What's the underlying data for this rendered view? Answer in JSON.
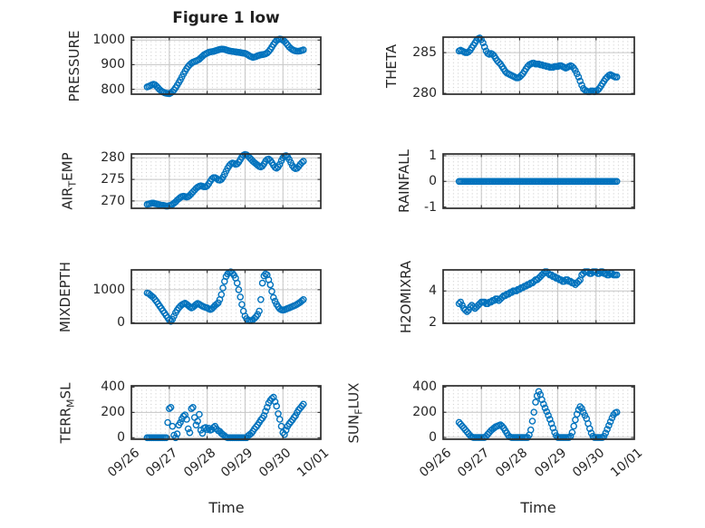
{
  "figure": {
    "background": "#ffffff",
    "marker_color": "#0072BD",
    "axis_border_color": "#2b2b2b",
    "tick_color": "#2b2b2b",
    "major_grid_color": "#c6c6c6",
    "minor_grid_dot_color": "#cdcdcd",
    "text_color": "#262626"
  },
  "chart_data": {
    "type": "scatter",
    "title": "Figure 1 low",
    "xlabel": "Time",
    "x_tick_labels": [
      "09/26",
      "09/27",
      "09/28",
      "09/29",
      "09/30",
      "10/01"
    ],
    "xlim_days": [
      0,
      5
    ],
    "x_hours": [
      10,
      11,
      12,
      13,
      14,
      15,
      16,
      17,
      18,
      19,
      20,
      21,
      22,
      23,
      24,
      25,
      26,
      27,
      28,
      29,
      30,
      31,
      32,
      33,
      34,
      35,
      36,
      37,
      38,
      39,
      40,
      41,
      42,
      43,
      44,
      45,
      46,
      47,
      48,
      49,
      50,
      51,
      52,
      53,
      54,
      55,
      56,
      57,
      58,
      59,
      60,
      61,
      62,
      63,
      64,
      65,
      66,
      67,
      68,
      69,
      70,
      71,
      72,
      73,
      74,
      75,
      76,
      77,
      78,
      79,
      80,
      81,
      82,
      83,
      84,
      85,
      86,
      87,
      88,
      89,
      90,
      91,
      92,
      93,
      94,
      95,
      96,
      97,
      98,
      99,
      100,
      101,
      102,
      103,
      104,
      105,
      106,
      107,
      108,
      109
    ],
    "subplots": [
      {
        "ylabel": "PRESSURE",
        "ylabel_parts": [
          {
            "t": "PRESSURE"
          }
        ],
        "ylim": [
          780,
          1012
        ],
        "yticks": [
          [
            800,
            "800"
          ],
          [
            900,
            "900"
          ],
          [
            1000,
            "1000"
          ]
        ],
        "values": [
          810,
          812,
          815,
          818,
          820,
          818,
          812,
          805,
          798,
          793,
          789,
          786,
          784,
          783,
          782,
          785,
          790,
          797,
          806,
          816,
          827,
          838,
          850,
          862,
          873,
          884,
          893,
          900,
          906,
          910,
          913,
          915,
          918,
          922,
          928,
          934,
          940,
          944,
          947,
          950,
          952,
          953,
          954,
          956,
          958,
          960,
          962,
          963,
          963,
          962,
          960,
          958,
          956,
          955,
          954,
          953,
          952,
          951,
          950,
          949,
          948,
          947,
          946,
          943,
          939,
          935,
          932,
          930,
          931,
          933,
          936,
          938,
          940,
          941,
          942,
          944,
          948,
          954,
          962,
          972,
          982,
          991,
          998,
          1002,
          1004,
          1003,
          1000,
          995,
          988,
          980,
          972,
          966,
          961,
          958,
          956,
          955,
          955,
          956,
          958,
          960
        ]
      },
      {
        "ylabel": "THETA",
        "ylabel_parts": [
          {
            "t": "THETA"
          }
        ],
        "ylim": [
          279.9,
          286.9
        ],
        "yticks": [
          [
            280,
            "280"
          ],
          [
            285,
            "285"
          ]
        ],
        "values": [
          285.2,
          285.3,
          285.2,
          285.1,
          285.0,
          285.0,
          285.1,
          285.3,
          285.6,
          285.9,
          286.2,
          286.5,
          286.7,
          286.8,
          286.6,
          286.2,
          285.7,
          285.2,
          284.9,
          284.8,
          284.9,
          284.8,
          284.6,
          284.3,
          284.0,
          283.8,
          283.6,
          283.3,
          283.0,
          282.7,
          282.5,
          282.4,
          282.3,
          282.2,
          282.1,
          282.0,
          281.9,
          281.9,
          282.0,
          282.2,
          282.4,
          282.7,
          283.0,
          283.3,
          283.5,
          283.6,
          283.7,
          283.7,
          283.6,
          283.6,
          283.6,
          283.5,
          283.5,
          283.4,
          283.4,
          283.3,
          283.3,
          283.2,
          283.2,
          283.2,
          283.3,
          283.3,
          283.3,
          283.4,
          283.4,
          283.3,
          283.2,
          283.1,
          283.2,
          283.3,
          283.4,
          283.3,
          283.1,
          282.8,
          282.4,
          282.0,
          281.5,
          281.0,
          280.6,
          280.4,
          280.3,
          280.2,
          280.2,
          280.3,
          280.3,
          280.2,
          280.3,
          280.4,
          280.6,
          280.9,
          281.2,
          281.5,
          281.8,
          282.0,
          282.2,
          282.3,
          282.2,
          282.1,
          282.0,
          282.0
        ]
      },
      {
        "ylabel": "AIR_TEMP",
        "ylabel_parts": [
          {
            "t": "AIR"
          },
          {
            "t": "T",
            "sub": true
          },
          {
            "t": "EMP"
          }
        ],
        "ylim": [
          268.3,
          280.9
        ],
        "yticks": [
          [
            270,
            "270"
          ],
          [
            275,
            "275"
          ],
          [
            280,
            "280"
          ]
        ],
        "values": [
          269.2,
          269.3,
          269.4,
          269.5,
          269.5,
          269.4,
          269.3,
          269.2,
          269.1,
          269.0,
          269.0,
          268.9,
          268.8,
          268.8,
          268.9,
          269.0,
          269.2,
          269.5,
          269.8,
          270.2,
          270.5,
          270.8,
          271.0,
          271.1,
          271.0,
          270.9,
          271.0,
          271.3,
          271.7,
          272.1,
          272.5,
          272.9,
          273.2,
          273.4,
          273.5,
          273.4,
          273.3,
          273.3,
          273.5,
          274.0,
          274.6,
          275.1,
          275.4,
          275.4,
          275.2,
          274.9,
          274.8,
          275.0,
          275.5,
          276.2,
          276.9,
          277.6,
          278.2,
          278.6,
          278.8,
          278.7,
          278.5,
          278.6,
          279.0,
          279.6,
          280.2,
          280.6,
          280.8,
          280.7,
          280.4,
          280.0,
          279.6,
          279.2,
          278.9,
          278.6,
          278.3,
          278.0,
          277.9,
          278.1,
          278.6,
          279.2,
          279.6,
          279.7,
          279.4,
          278.9,
          278.3,
          277.8,
          277.6,
          277.9,
          278.5,
          279.3,
          280.0,
          280.4,
          280.5,
          280.2,
          279.6,
          278.9,
          278.2,
          277.7,
          277.5,
          277.6,
          278.0,
          278.5,
          278.9,
          279.2
        ]
      },
      {
        "ylabel": "RAINFALL",
        "ylabel_parts": [
          {
            "t": "RAINFALL"
          }
        ],
        "ylim": [
          -1.05,
          1.07
        ],
        "yticks": [
          [
            -1,
            "-1"
          ],
          [
            0,
            "0"
          ],
          [
            1,
            "1"
          ]
        ],
        "values": [
          0,
          0,
          0,
          0,
          0,
          0,
          0,
          0,
          0,
          0,
          0,
          0,
          0,
          0,
          0,
          0,
          0,
          0,
          0,
          0,
          0,
          0,
          0,
          0,
          0,
          0,
          0,
          0,
          0,
          0,
          0,
          0,
          0,
          0,
          0,
          0,
          0,
          0,
          0,
          0,
          0,
          0,
          0,
          0,
          0,
          0,
          0,
          0,
          0,
          0,
          0,
          0,
          0,
          0,
          0,
          0,
          0,
          0,
          0,
          0,
          0,
          0,
          0,
          0,
          0,
          0,
          0,
          0,
          0,
          0,
          0,
          0,
          0,
          0,
          0,
          0,
          0,
          0,
          0,
          0,
          0,
          0,
          0,
          0,
          0,
          0,
          0,
          0,
          0,
          0,
          0,
          0,
          0,
          0,
          0,
          0,
          0,
          0,
          0,
          0
        ]
      },
      {
        "ylabel": "MIXDEPTH",
        "ylabel_parts": [
          {
            "t": "MIXDEPTH"
          }
        ],
        "ylim": [
          -20,
          1600
        ],
        "yticks": [
          [
            0,
            "0"
          ],
          [
            1000,
            "1000"
          ]
        ],
        "values": [
          900,
          880,
          840,
          800,
          760,
          700,
          640,
          570,
          500,
          430,
          360,
          290,
          220,
          150,
          80,
          40,
          100,
          200,
          300,
          380,
          450,
          500,
          540,
          570,
          590,
          560,
          520,
          480,
          450,
          470,
          510,
          550,
          580,
          560,
          530,
          500,
          480,
          460,
          450,
          420,
          400,
          420,
          470,
          520,
          560,
          600,
          700,
          850,
          1050,
          1250,
          1400,
          1480,
          1520,
          1540,
          1500,
          1440,
          1350,
          1200,
          1000,
          780,
          550,
          350,
          200,
          120,
          80,
          60,
          60,
          90,
          130,
          180,
          250,
          350,
          700,
          1200,
          1420,
          1480,
          1450,
          1300,
          1150,
          950,
          760,
          650,
          560,
          480,
          420,
          390,
          380,
          390,
          410,
          430,
          450,
          470,
          490,
          510,
          530,
          560,
          590,
          620,
          660,
          700
        ]
      },
      {
        "ylabel": "H2OMIXRA",
        "ylabel_parts": [
          {
            "t": "H2OMIXRA"
          }
        ],
        "ylim": [
          1.97,
          5.32
        ],
        "yticks": [
          [
            2,
            "2"
          ],
          [
            4,
            "4"
          ]
        ],
        "values": [
          3.2,
          3.3,
          3.1,
          2.9,
          2.8,
          2.7,
          2.8,
          3.0,
          3.1,
          3.0,
          2.9,
          3.0,
          3.1,
          3.2,
          3.3,
          3.3,
          3.3,
          3.2,
          3.2,
          3.3,
          3.3,
          3.4,
          3.4,
          3.5,
          3.5,
          3.4,
          3.5,
          3.6,
          3.7,
          3.7,
          3.8,
          3.8,
          3.9,
          3.9,
          4.0,
          4.0,
          4.0,
          4.1,
          4.1,
          4.2,
          4.2,
          4.3,
          4.3,
          4.4,
          4.4,
          4.5,
          4.5,
          4.6,
          4.7,
          4.7,
          4.8,
          4.9,
          5.0,
          5.1,
          5.2,
          5.2,
          5.1,
          5.0,
          5.0,
          4.9,
          4.9,
          4.8,
          4.8,
          4.7,
          4.7,
          4.6,
          4.6,
          4.7,
          4.7,
          4.6,
          4.6,
          4.5,
          4.5,
          4.4,
          4.5,
          4.6,
          4.7,
          5.0,
          5.1,
          5.2,
          5.2,
          5.2,
          5.1,
          5.1,
          5.2,
          5.2,
          5.2,
          5.1,
          5.1,
          5.2,
          5.2,
          5.1,
          5.1,
          5.0,
          5.0,
          5.1,
          5.1,
          5.0,
          5.0,
          5.0
        ]
      },
      {
        "ylabel": "TERR_MSL",
        "ylabel_parts": [
          {
            "t": "TERR"
          },
          {
            "t": "M",
            "sub": true
          },
          {
            "t": "SL"
          }
        ],
        "ylim": [
          -12,
          410
        ],
        "yticks": [
          [
            0,
            "0"
          ],
          [
            200,
            "200"
          ],
          [
            400,
            "400"
          ]
        ],
        "values": [
          0,
          0,
          0,
          0,
          0,
          0,
          0,
          0,
          0,
          0,
          0,
          0,
          0,
          120,
          230,
          240,
          90,
          20,
          0,
          30,
          100,
          120,
          150,
          170,
          180,
          145,
          70,
          40,
          230,
          240,
          160,
          100,
          130,
          185,
          60,
          35,
          75,
          80,
          65,
          75,
          60,
          65,
          80,
          90,
          70,
          55,
          50,
          35,
          25,
          15,
          5,
          0,
          0,
          0,
          0,
          0,
          0,
          0,
          0,
          0,
          0,
          0,
          0,
          0,
          15,
          25,
          35,
          50,
          70,
          85,
          100,
          120,
          140,
          155,
          175,
          210,
          240,
          275,
          295,
          310,
          320,
          285,
          250,
          190,
          145,
          90,
          40,
          25,
          60,
          90,
          110,
          125,
          140,
          160,
          175,
          200,
          220,
          235,
          250,
          265
        ]
      },
      {
        "ylabel": "SUN_FLUX",
        "ylabel_parts": [
          {
            "t": "SUN"
          },
          {
            "t": "F",
            "sub": true
          },
          {
            "t": "LUX"
          }
        ],
        "ylim": [
          -14,
          410
        ],
        "yticks": [
          [
            0,
            "0"
          ],
          [
            200,
            "200"
          ],
          [
            400,
            "400"
          ]
        ],
        "values": [
          120,
          105,
          90,
          75,
          60,
          45,
          30,
          15,
          5,
          0,
          0,
          0,
          0,
          0,
          0,
          0,
          0,
          10,
          25,
          40,
          55,
          65,
          75,
          85,
          90,
          95,
          100,
          90,
          75,
          55,
          35,
          15,
          5,
          0,
          0,
          0,
          0,
          0,
          0,
          0,
          0,
          0,
          0,
          0,
          20,
          60,
          130,
          200,
          280,
          330,
          365,
          340,
          300,
          265,
          235,
          205,
          175,
          145,
          110,
          75,
          40,
          15,
          0,
          0,
          0,
          0,
          0,
          0,
          0,
          0,
          10,
          40,
          90,
          140,
          185,
          220,
          245,
          230,
          200,
          175,
          150,
          110,
          70,
          35,
          10,
          0,
          0,
          0,
          0,
          0,
          0,
          10,
          35,
          65,
          95,
          125,
          155,
          180,
          195,
          200
        ]
      }
    ]
  }
}
